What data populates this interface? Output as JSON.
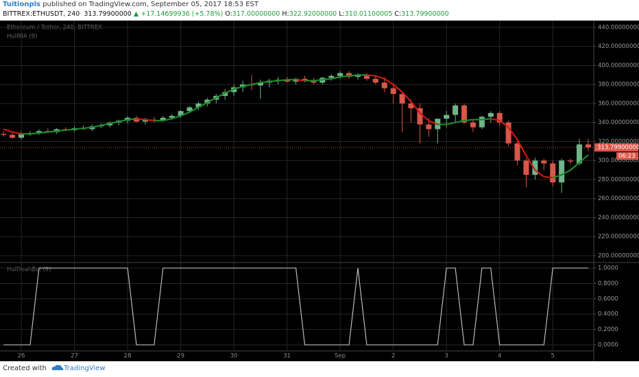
{
  "header": {
    "author": "Tuitionpls",
    "published": "published on TradingView.com, September 05, 2017 18:53 EST",
    "symbol": "BITTREX:ETHUSDT, 240",
    "price": "313.79900000",
    "arrow": "▲",
    "change": "+17.14699936 (+5.78%)",
    "o_label": "O:",
    "o": "317.00000000",
    "h_label": "H:",
    "h": "322.92000000",
    "l_label": "L:",
    "l": "310.01100005",
    "c_label": "C:",
    "c": "313.79900000"
  },
  "footer": {
    "created": "Created with",
    "brand": "TradingView"
  },
  "chart_data": [
    {
      "type": "candlestick",
      "title": "Ethereum / Tether, 240, BITTREX",
      "categories": [
        null,
        null,
        "26",
        null,
        null,
        null,
        null,
        null,
        "27",
        null,
        null,
        null,
        null,
        null,
        "28",
        null,
        null,
        null,
        null,
        null,
        "29",
        null,
        null,
        null,
        null,
        null,
        "30",
        null,
        null,
        null,
        null,
        null,
        "31",
        null,
        null,
        null,
        null,
        null,
        "Sep",
        null,
        null,
        null,
        null,
        null,
        "2",
        null,
        null,
        null,
        null,
        null,
        "3",
        null,
        null,
        null,
        null,
        null,
        "4",
        null,
        null,
        null,
        null,
        null,
        "5",
        null,
        null,
        null,
        null
      ],
      "open": [
        328,
        327,
        324,
        328,
        329,
        331,
        330,
        333,
        332,
        334,
        333,
        336,
        337,
        340,
        342,
        345,
        341,
        343,
        342,
        345,
        347,
        352,
        356,
        360,
        364,
        368,
        372,
        377,
        380,
        379,
        382,
        384,
        385,
        383,
        386,
        384,
        382,
        387,
        389,
        392,
        388,
        390,
        386,
        382,
        376,
        370,
        360,
        355,
        338,
        333,
        344,
        348,
        358,
        340,
        335,
        346,
        350,
        340,
        318,
        300,
        285,
        300,
        297,
        277,
        300,
        297,
        317
      ],
      "high": [
        331,
        329,
        330,
        331,
        333,
        334,
        334,
        335,
        336,
        337,
        338,
        339,
        341,
        343,
        347,
        347,
        345,
        346,
        347,
        349,
        353,
        357,
        362,
        366,
        370,
        375,
        380,
        384,
        390,
        385,
        386,
        388,
        388,
        387,
        389,
        387,
        388,
        391,
        394,
        394,
        392,
        392,
        390,
        388,
        381,
        372,
        364,
        360,
        345,
        343,
        352,
        360,
        360,
        343,
        347,
        352,
        352,
        342,
        320,
        302,
        303,
        302,
        300,
        302,
        302,
        323,
        322.92
      ],
      "low": [
        325,
        323,
        322,
        326,
        327,
        329,
        328,
        331,
        330,
        332,
        331,
        334,
        335,
        337,
        339,
        340,
        338,
        340,
        341,
        343,
        345,
        350,
        353,
        357,
        360,
        364,
        368,
        372,
        374,
        365,
        377,
        380,
        382,
        380,
        382,
        380,
        380,
        384,
        386,
        386,
        385,
        384,
        380,
        372,
        360,
        330,
        340,
        318,
        325,
        318,
        335,
        340,
        338,
        330,
        333,
        340,
        336,
        315,
        295,
        272,
        280,
        290,
        273,
        266,
        296,
        295,
        310.011
      ],
      "close": [
        327,
        324,
        328,
        329,
        331,
        330,
        333,
        332,
        334,
        333,
        336,
        337,
        340,
        342,
        345,
        341,
        343,
        342,
        345,
        347,
        352,
        356,
        360,
        364,
        368,
        372,
        377,
        380,
        379,
        382,
        384,
        385,
        383,
        386,
        384,
        382,
        387,
        389,
        392,
        388,
        390,
        386,
        382,
        376,
        370,
        360,
        355,
        338,
        333,
        344,
        348,
        358,
        340,
        335,
        346,
        350,
        340,
        318,
        300,
        285,
        300,
        297,
        277,
        300,
        299,
        317,
        313.799
      ],
      "up_color": "#6fb58a",
      "down_color": "#d9574a",
      "series": [
        {
          "name": "HullMA (9)",
          "up_color": "#1d8a2a",
          "down_color": "#cc1a12",
          "values": [
            333,
            330,
            328,
            328,
            329,
            330,
            331,
            332,
            333,
            334,
            335,
            337,
            339,
            341,
            343,
            344,
            343,
            342,
            342,
            344,
            347,
            351,
            356,
            361,
            366,
            371,
            375,
            378,
            380,
            382,
            383,
            384,
            385,
            385,
            384,
            384,
            385,
            386,
            388,
            389,
            390,
            390,
            389,
            386,
            380,
            372,
            362,
            350,
            342,
            338,
            338,
            340,
            342,
            343,
            343,
            344,
            342,
            335,
            322,
            305,
            290,
            283,
            282,
            285,
            290,
            298,
            306
          ]
        }
      ],
      "last_price": {
        "value": 313.799,
        "label": "313.79900000"
      },
      "last_price_color": "#d9574a",
      "countdown": "06:23",
      "ylim": [
        193.5,
        447.2
      ],
      "yticks": [
        {
          "value": 200,
          "label": "200.00000000"
        },
        {
          "value": 220,
          "label": "220.00000000"
        },
        {
          "value": 240,
          "label": "240.00000000"
        },
        {
          "value": 260,
          "label": "260.00000000"
        },
        {
          "value": 280,
          "label": "280.00000000"
        },
        {
          "value": 300,
          "label": "300.00000000"
        },
        {
          "value": 320,
          "label": "320.00000000"
        },
        {
          "value": 340,
          "label": "340.00000000"
        },
        {
          "value": 360,
          "label": "360.00000000"
        },
        {
          "value": 380,
          "label": "380.00000000"
        },
        {
          "value": 400,
          "label": "400.00000000"
        },
        {
          "value": 420,
          "label": "420.00000000"
        },
        {
          "value": 440,
          "label": "440.00000000"
        }
      ],
      "grid": true
    },
    {
      "type": "line",
      "title": "HullYeahBoi (9)",
      "series": [
        {
          "name": "HullYeahBoi (9)",
          "color": "#bdbdbd",
          "values": [
            0,
            0,
            0,
            0,
            1,
            1,
            1,
            1,
            1,
            1,
            1,
            1,
            1,
            1,
            1,
            0,
            0,
            0,
            1,
            1,
            1,
            1,
            1,
            1,
            1,
            1,
            1,
            1,
            1,
            1,
            1,
            1,
            1,
            1,
            0,
            0,
            0,
            0,
            0,
            0,
            1,
            0,
            0,
            0,
            0,
            0,
            0,
            0,
            0,
            0,
            1,
            1,
            0,
            0,
            1,
            1,
            0,
            0,
            0,
            0,
            0,
            0,
            1,
            1,
            1,
            1,
            1
          ]
        }
      ],
      "ylim": [
        -0.08,
        1.045
      ],
      "yticks": [
        {
          "value": 0,
          "label": "0.0000"
        },
        {
          "value": 0.2,
          "label": "0.2000"
        },
        {
          "value": 0.4,
          "label": "0.4000"
        },
        {
          "value": 0.6,
          "label": "0.6000"
        },
        {
          "value": 0.8,
          "label": "0.8000"
        },
        {
          "value": 1,
          "label": "1.0000"
        }
      ],
      "grid": true
    }
  ]
}
